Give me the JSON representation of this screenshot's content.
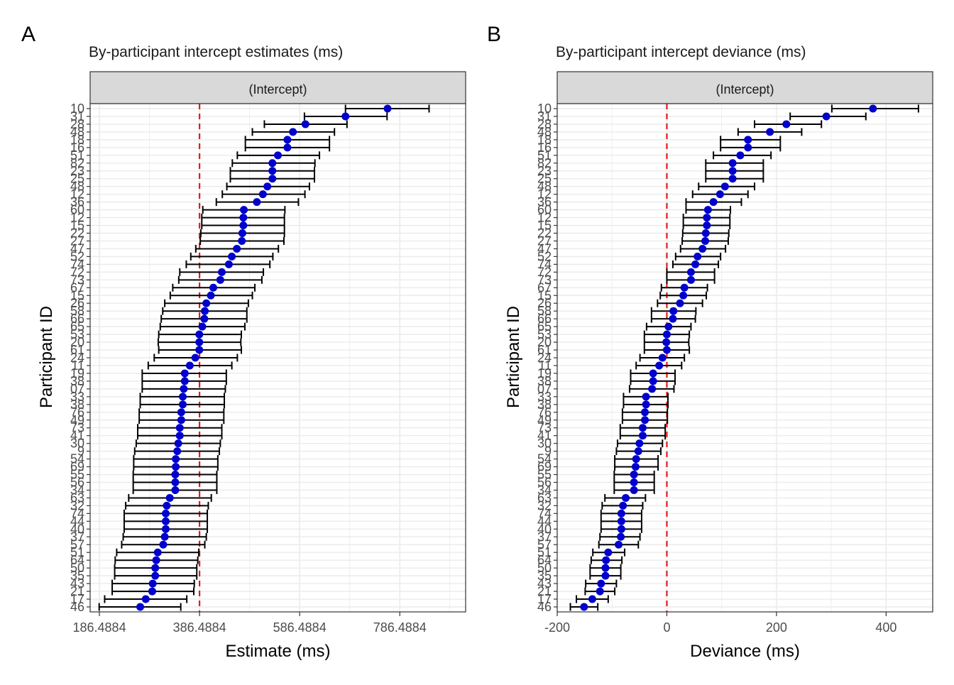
{
  "panels": [
    {
      "tag": "A",
      "title": "By-participant intercept estimates (ms)",
      "strip": "(Intercept)",
      "xlabel": "Estimate (ms)",
      "ylabel": "Participant ID"
    },
    {
      "tag": "B",
      "title": "By-participant intercept deviance (ms)",
      "strip": "(Intercept)",
      "xlabel": "Deviance (ms)",
      "ylabel": "Participant ID"
    }
  ],
  "colors": {
    "point": "#0000CD",
    "errorbar": "#000000",
    "reference_line": "#E41A1C",
    "grid": "#EBEBEB",
    "strip_fill": "#D9D9D9"
  },
  "chart_data": [
    {
      "type": "scatter",
      "subtype": "dot-and-errorbar",
      "title": "By-participant intercept estimates (ms)",
      "xlabel": "Estimate (ms)",
      "ylabel": "Participant ID",
      "xlim": [
        168,
        918
      ],
      "xticks": [
        186.4884,
        386.4884,
        586.4884,
        786.4884
      ],
      "xtick_labels": [
        "186.4884",
        "386.4884",
        "586.4884",
        "786.4884"
      ],
      "reference_line": 386.4884,
      "grid": true,
      "ids": [
        "10",
        "31",
        "28",
        "48",
        "18",
        "16",
        "51",
        "82",
        "23",
        "25",
        "48",
        "12",
        "36",
        "60",
        "12",
        "15",
        "22",
        "27",
        "47",
        "52",
        "74",
        "72",
        "73",
        "67",
        "15",
        "26",
        "58",
        "66",
        "65",
        "53",
        "20",
        "61",
        "24",
        "11",
        "19",
        "38",
        "07",
        "33",
        "38",
        "76",
        "49",
        "73",
        "41",
        "30",
        "9",
        "54",
        "69",
        "55",
        "56",
        "34",
        "63",
        "32",
        "74",
        "44",
        "40",
        "37",
        "57",
        "51",
        "64",
        "50",
        "35",
        "43",
        "21",
        "17",
        "46"
      ],
      "tick_labels_shown": [
        "10",
        "31",
        "28",
        "16",
        "30",
        "46"
      ],
      "estimates": [
        762,
        678,
        598,
        573,
        562,
        562,
        543,
        532,
        532,
        532,
        522,
        513,
        501,
        475,
        474,
        474,
        472,
        471,
        461,
        451,
        445,
        431,
        428,
        414,
        409,
        400,
        397,
        396,
        392,
        386,
        386,
        386,
        378,
        367,
        357,
        357,
        355,
        353,
        353,
        350,
        350,
        347,
        347,
        344,
        342,
        339,
        339,
        338,
        338,
        338,
        327,
        321,
        319,
        319,
        319,
        317,
        314,
        303,
        300,
        298,
        298,
        293,
        292,
        279,
        268
      ],
      "lower": [
        678,
        596,
        516,
        492,
        478,
        478,
        462,
        452,
        448,
        448,
        441,
        432,
        420,
        393,
        391,
        391,
        389,
        388,
        379,
        369,
        360,
        347,
        345,
        333,
        328,
        317,
        313,
        310,
        308,
        305,
        304,
        305,
        296,
        284,
        272,
        272,
        272,
        268,
        268,
        266,
        266,
        263,
        263,
        260,
        257,
        255,
        255,
        254,
        254,
        254,
        245,
        239,
        236,
        236,
        236,
        234,
        231,
        221,
        218,
        217,
        217,
        212,
        212,
        197,
        186
      ],
      "upper": [
        845,
        761,
        681,
        656,
        646,
        646,
        626,
        617,
        616,
        616,
        606,
        597,
        584,
        557,
        556,
        556,
        556,
        555,
        544,
        533,
        527,
        514,
        511,
        497,
        492,
        484,
        481,
        481,
        477,
        470,
        469,
        470,
        462,
        451,
        440,
        440,
        438,
        436,
        436,
        435,
        435,
        431,
        431,
        428,
        426,
        423,
        423,
        421,
        421,
        421,
        410,
        404,
        402,
        402,
        402,
        400,
        397,
        385,
        383,
        381,
        381,
        376,
        375,
        361,
        349
      ]
    },
    {
      "type": "scatter",
      "subtype": "dot-and-errorbar",
      "title": "By-participant intercept deviance (ms)",
      "xlabel": "Deviance (ms)",
      "ylabel": "Participant ID",
      "xlim": [
        -200,
        485
      ],
      "xticks": [
        -200,
        0,
        200,
        400
      ],
      "xtick_labels": [
        "-200",
        "0",
        "200",
        "400"
      ],
      "reference_line": 0,
      "grid": true,
      "ids": [
        "10",
        "31",
        "28",
        "48",
        "18",
        "16",
        "51",
        "82",
        "23",
        "25",
        "48",
        "12",
        "36",
        "60",
        "12",
        "15",
        "22",
        "27",
        "47",
        "52",
        "74",
        "72",
        "73",
        "67",
        "15",
        "26",
        "58",
        "66",
        "65",
        "53",
        "20",
        "61",
        "24",
        "11",
        "19",
        "38",
        "07",
        "33",
        "38",
        "76",
        "49",
        "73",
        "41",
        "30",
        "9",
        "54",
        "69",
        "55",
        "56",
        "34",
        "63",
        "32",
        "74",
        "44",
        "40",
        "37",
        "57",
        "51",
        "64",
        "50",
        "35",
        "43",
        "21",
        "17",
        "46"
      ],
      "tick_labels_shown": [
        "10",
        "31",
        "28",
        "16",
        "30",
        "46"
      ],
      "values": [
        376,
        291,
        218,
        188,
        148,
        148,
        134,
        120,
        120,
        120,
        106,
        97,
        85,
        75,
        73,
        73,
        71,
        70,
        65,
        56,
        52,
        44,
        44,
        32,
        30,
        24,
        12,
        11,
        3,
        0,
        -1,
        0,
        -8,
        -14,
        -25,
        -25,
        -27,
        -38,
        -38,
        -40,
        -40,
        -44,
        -44,
        -50,
        -52,
        -56,
        -57,
        -60,
        -60,
        -60,
        -75,
        -80,
        -83,
        -83,
        -83,
        -84,
        -88,
        -107,
        -111,
        -112,
        -112,
        -120,
        -122,
        -136,
        -151
      ],
      "lower": [
        301,
        225,
        160,
        130,
        98,
        98,
        85,
        71,
        71,
        71,
        58,
        47,
        35,
        35,
        30,
        30,
        29,
        28,
        25,
        16,
        11,
        0,
        0,
        -10,
        -12,
        -17,
        -28,
        -28,
        -37,
        -41,
        -41,
        -41,
        -49,
        -56,
        -66,
        -66,
        -68,
        -79,
        -79,
        -81,
        -81,
        -85,
        -85,
        -90,
        -92,
        -95,
        -95,
        -96,
        -96,
        -96,
        -113,
        -118,
        -120,
        -120,
        -120,
        -122,
        -124,
        -135,
        -138,
        -140,
        -140,
        -148,
        -149,
        -165,
        -176
      ],
      "upper": [
        459,
        363,
        282,
        246,
        207,
        207,
        190,
        176,
        176,
        176,
        160,
        148,
        136,
        116,
        115,
        115,
        113,
        112,
        107,
        98,
        94,
        87,
        87,
        74,
        72,
        65,
        53,
        52,
        44,
        41,
        40,
        41,
        32,
        27,
        15,
        15,
        13,
        2,
        2,
        1,
        1,
        -3,
        -3,
        -8,
        -11,
        -16,
        -16,
        -23,
        -23,
        -23,
        -39,
        -44,
        -46,
        -46,
        -46,
        -49,
        -52,
        -77,
        -82,
        -84,
        -84,
        -92,
        -95,
        -107,
        -126
      ]
    }
  ]
}
